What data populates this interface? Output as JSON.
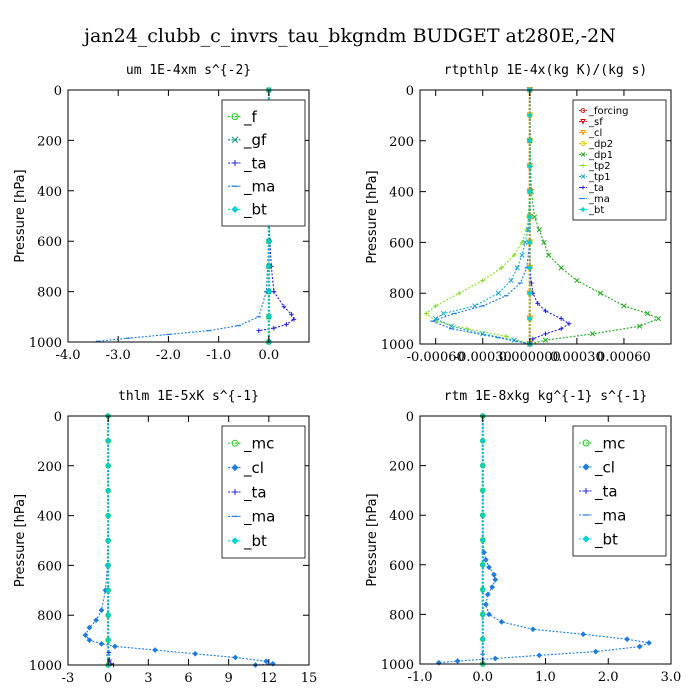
{
  "figure_title": "jan24_clubb_c_invrs_tau_bkgndm  BUDGET at280E,-2N",
  "chart_data": [
    {
      "type": "line",
      "title": "um   1E-4xm s^{-2}",
      "ylabel": "Pressure [hPa]",
      "xlim": [
        -4.0,
        0.8
      ],
      "ylim": [
        1000,
        0
      ],
      "xticks": [
        "-4.0",
        "-3.0",
        "-2.0",
        "-1.0",
        "0.0"
      ],
      "xtick_values": [
        -4.0,
        -3.0,
        -2.0,
        -1.0,
        0.0
      ],
      "yticks": [
        "0",
        "200",
        "400",
        "600",
        "800",
        "1000"
      ],
      "ytick_values": [
        0,
        200,
        400,
        600,
        800,
        1000
      ],
      "legend_position": "top-right",
      "legend_entries": [
        "_f",
        "_gf",
        "_ta",
        "_ma",
        "_bt"
      ],
      "series": [
        {
          "name": "_f",
          "color": "#22cc22",
          "marker": "circle",
          "x": [
            0,
            0,
            0,
            0,
            0,
            0,
            0,
            0,
            0,
            0,
            0
          ],
          "y": [
            0,
            100,
            200,
            300,
            400,
            500,
            600,
            700,
            800,
            900,
            1000
          ]
        },
        {
          "name": "_gf",
          "color": "#0b8f7c",
          "marker": "x",
          "x": [
            0,
            0,
            0,
            0,
            0,
            0,
            0,
            0,
            0,
            0,
            0
          ],
          "y": [
            0,
            100,
            200,
            300,
            400,
            500,
            600,
            700,
            800,
            900,
            1000
          ]
        },
        {
          "name": "_ta",
          "color": "#2222dd",
          "marker": "plus",
          "x": [
            0,
            0,
            0,
            0,
            0,
            0,
            0.02,
            0.05,
            0.1,
            0.3,
            0.45,
            0.5,
            0.35,
            0.1,
            -0.2
          ],
          "y": [
            0,
            100,
            200,
            300,
            400,
            500,
            600,
            700,
            800,
            860,
            890,
            910,
            930,
            945,
            955
          ]
        },
        {
          "name": "_ma",
          "color": "#1e7ce0",
          "marker": "dash",
          "x": [
            0,
            0,
            0,
            0,
            0,
            0,
            0,
            -0.05,
            -0.2,
            -0.6,
            -1.2,
            -2.0,
            -2.8,
            -3.4
          ],
          "y": [
            0,
            100,
            200,
            300,
            400,
            500,
            600,
            800,
            900,
            935,
            955,
            970,
            985,
            997
          ]
        },
        {
          "name": "_bt",
          "color": "#00d0d0",
          "marker": "diamond",
          "x": [
            0,
            0,
            0,
            0,
            0,
            0,
            0,
            0,
            0,
            0,
            0
          ],
          "y": [
            0,
            100,
            200,
            300,
            400,
            500,
            600,
            700,
            800,
            900,
            1000
          ]
        }
      ]
    },
    {
      "type": "line",
      "title": "rtpthlp  1E-4x(kg K)/(kg s)",
      "ylabel": "Pressure [hPa]",
      "xlim": [
        -0.0007,
        0.0009
      ],
      "ylim": [
        1000,
        0
      ],
      "xticks": [
        "-0.00060",
        "-0.00030",
        "0.000000",
        "0.00030",
        "0.00060"
      ],
      "xtick_values": [
        -0.0006,
        -0.0003,
        0.0,
        0.0003,
        0.0006
      ],
      "yticks": [
        "0",
        "200",
        "400",
        "600",
        "800",
        "1000"
      ],
      "ytick_values": [
        0,
        200,
        400,
        600,
        800,
        1000
      ],
      "legend_position": "top-right",
      "legend_entries": [
        "_forcing",
        "_sf",
        "_cl",
        "_dp2",
        "_dp1",
        "_tp2",
        "_tp1",
        "_ta",
        "_ma",
        "_bt"
      ],
      "series": [
        {
          "name": "_forcing",
          "color": "#cc2222",
          "marker": "circle",
          "x": [
            0,
            0,
            0,
            0,
            0,
            0,
            0,
            0,
            0,
            0,
            0
          ],
          "y": [
            0,
            100,
            200,
            300,
            400,
            500,
            600,
            700,
            800,
            900,
            1000
          ]
        },
        {
          "name": "_sf",
          "color": "#dd0000",
          "marker": "triangle",
          "x": [
            0,
            0,
            0,
            0,
            0,
            0,
            0,
            0,
            0,
            0,
            0
          ],
          "y": [
            0,
            100,
            200,
            300,
            400,
            500,
            600,
            700,
            800,
            900,
            1000
          ]
        },
        {
          "name": "_cl",
          "color": "#ee9900",
          "marker": "triangle",
          "x": [
            0,
            0,
            0,
            0,
            0,
            0,
            0,
            0,
            0,
            0,
            0
          ],
          "y": [
            0,
            100,
            200,
            300,
            400,
            500,
            600,
            700,
            800,
            900,
            1000
          ]
        },
        {
          "name": "_dp2",
          "color": "#ddcc00",
          "marker": "circle",
          "x": [
            0,
            0,
            0,
            0,
            0,
            0,
            0,
            0,
            0,
            0,
            0
          ],
          "y": [
            0,
            100,
            200,
            300,
            400,
            500,
            600,
            700,
            800,
            900,
            1000
          ]
        },
        {
          "name": "_dp1",
          "color": "#22aa22",
          "marker": "x",
          "x": [
            0,
            0,
            1e-05,
            3e-05,
            6e-05,
            9e-05,
            0.00012,
            0.0002,
            0.0003,
            0.00045,
            0.0006,
            0.00075,
            0.00082,
            0.0007,
            0.0004,
            0.0001,
            0
          ],
          "y": [
            0,
            200,
            400,
            500,
            550,
            600,
            650,
            700,
            750,
            800,
            850,
            880,
            900,
            930,
            960,
            985,
            1000
          ]
        },
        {
          "name": "_tp2",
          "color": "#88dd22",
          "marker": "plus",
          "x": [
            0,
            0,
            -1e-05,
            -2e-05,
            -5e-05,
            -0.0001,
            -0.00018,
            -0.0003,
            -0.00045,
            -0.0006,
            -0.00066,
            -0.0006,
            -0.0004,
            -0.00015,
            0
          ],
          "y": [
            0,
            400,
            500,
            550,
            600,
            650,
            700,
            750,
            800,
            850,
            880,
            910,
            940,
            970,
            1000
          ]
        },
        {
          "name": "_tp1",
          "color": "#22aacc",
          "marker": "x",
          "x": [
            0,
            0,
            -1e-05,
            -3e-05,
            -5e-05,
            -8e-05,
            -0.00012,
            -0.0002,
            -0.00035,
            -0.00055,
            -0.0006,
            -0.0005,
            -0.0003,
            -0.0001,
            0
          ],
          "y": [
            0,
            400,
            550,
            600,
            650,
            700,
            750,
            800,
            850,
            880,
            900,
            930,
            960,
            985,
            1000
          ]
        },
        {
          "name": "_ta",
          "color": "#2222dd",
          "marker": "plus",
          "x": [
            0,
            0,
            1e-05,
            2e-05,
            5e-05,
            0.0001,
            0.0002,
            0.00025,
            0.0002,
            0.0001,
            2e-05,
            0
          ],
          "y": [
            0,
            700,
            760,
            800,
            840,
            870,
            900,
            920,
            940,
            960,
            980,
            1000
          ]
        },
        {
          "name": "_ma",
          "color": "#1e7ce0",
          "marker": "dash",
          "x": [
            0,
            0,
            -2e-05,
            -6e-05,
            -0.00015,
            -0.0003,
            -0.00048,
            -0.00062,
            -0.0005,
            -0.0002,
            0
          ],
          "y": [
            0,
            600,
            700,
            760,
            810,
            850,
            880,
            910,
            940,
            975,
            1000
          ]
        },
        {
          "name": "_bt",
          "color": "#00d0d0",
          "marker": "diamond",
          "x": [
            0,
            0,
            0,
            0,
            0,
            0,
            0,
            0,
            0,
            0,
            0
          ],
          "y": [
            0,
            100,
            200,
            300,
            400,
            500,
            600,
            700,
            800,
            900,
            1000
          ]
        }
      ]
    },
    {
      "type": "line",
      "title": "thlm  1E-5xK s^{-1}",
      "ylabel": "Pressure [hPa]",
      "xlim": [
        -3,
        15
      ],
      "ylim": [
        1000,
        0
      ],
      "xticks": [
        "-3",
        "0",
        "3",
        "6",
        "9",
        "12",
        "15"
      ],
      "xtick_values": [
        -3,
        0,
        3,
        6,
        9,
        12,
        15
      ],
      "yticks": [
        "0",
        "200",
        "400",
        "600",
        "800",
        "1000"
      ],
      "ytick_values": [
        0,
        200,
        400,
        600,
        800,
        1000
      ],
      "legend_position": "top-right",
      "legend_entries": [
        "_mc",
        "_cl",
        "_ta",
        "_ma",
        "_bt"
      ],
      "series": [
        {
          "name": "_mc",
          "color": "#22cc22",
          "marker": "circle",
          "x": [
            0,
            0,
            0,
            0,
            0,
            0,
            0,
            0,
            0,
            0,
            0
          ],
          "y": [
            0,
            100,
            200,
            300,
            400,
            500,
            600,
            700,
            800,
            900,
            1000
          ]
        },
        {
          "name": "_cl",
          "color": "#1e7ce0",
          "marker": "diamond",
          "x": [
            0,
            0,
            -0.05,
            -0.2,
            -0.5,
            -0.9,
            -1.4,
            -1.7,
            -1.4,
            -0.5,
            0.5,
            3.5,
            6.5,
            9.5,
            11.8,
            12.3,
            11.0
          ],
          "y": [
            0,
            500,
            600,
            700,
            780,
            820,
            850,
            880,
            900,
            915,
            925,
            940,
            955,
            970,
            985,
            995,
            1000
          ]
        },
        {
          "name": "_ta",
          "color": "#2222dd",
          "marker": "plus",
          "x": [
            0,
            0,
            0,
            0,
            0,
            0,
            0.05,
            0.1,
            0.2,
            0.4
          ],
          "y": [
            0,
            200,
            400,
            600,
            800,
            900,
            950,
            980,
            995,
            1000
          ]
        },
        {
          "name": "_ma",
          "color": "#1e7ce0",
          "marker": "dash",
          "x": [
            0,
            0,
            0,
            0,
            0,
            0,
            0,
            0
          ],
          "y": [
            0,
            200,
            400,
            600,
            800,
            900,
            960,
            1000
          ]
        },
        {
          "name": "_bt",
          "color": "#00d0d0",
          "marker": "diamond",
          "x": [
            0,
            0,
            0,
            0,
            0,
            0,
            0,
            0,
            0,
            0,
            0
          ],
          "y": [
            0,
            100,
            200,
            300,
            400,
            500,
            600,
            700,
            800,
            900,
            1000
          ]
        }
      ]
    },
    {
      "type": "line",
      "title": "rtm  1E-8xkg kg^{-1} s^{-1}",
      "ylabel": "Pressure [hPa]",
      "xlim": [
        -1.0,
        3.0
      ],
      "ylim": [
        1000,
        0
      ],
      "xticks": [
        "-1.0",
        "0.0",
        "1.0",
        "2.0",
        "3.0"
      ],
      "xtick_values": [
        -1.0,
        0.0,
        1.0,
        2.0,
        3.0
      ],
      "yticks": [
        "0",
        "200",
        "400",
        "600",
        "800",
        "1000"
      ],
      "ytick_values": [
        0,
        200,
        400,
        600,
        800,
        1000
      ],
      "legend_position": "top-right",
      "legend_entries": [
        "_mc",
        "_cl",
        "_ta",
        "_ma",
        "_bt"
      ],
      "series": [
        {
          "name": "_mc",
          "color": "#22cc22",
          "marker": "circle",
          "x": [
            0,
            0,
            0,
            0,
            0,
            0,
            0,
            0,
            0,
            0,
            0
          ],
          "y": [
            0,
            100,
            200,
            300,
            400,
            500,
            600,
            700,
            800,
            900,
            1000
          ]
        },
        {
          "name": "_cl",
          "color": "#1e7ce0",
          "marker": "diamond",
          "x": [
            0,
            0,
            0.02,
            0.05,
            0.1,
            0.18,
            0.2,
            0.15,
            0.08,
            0.05,
            0.1,
            0.3,
            0.8,
            1.6,
            2.3,
            2.65,
            2.5,
            1.8,
            0.9,
            0.2,
            -0.4,
            -0.7
          ],
          "y": [
            0,
            500,
            550,
            580,
            610,
            640,
            660,
            690,
            720,
            760,
            800,
            830,
            860,
            880,
            900,
            915,
            930,
            950,
            965,
            978,
            988,
            995
          ]
        },
        {
          "name": "_ta",
          "color": "#2222dd",
          "marker": "plus",
          "x": [
            0,
            0,
            0,
            0,
            0,
            0,
            0,
            0
          ],
          "y": [
            0,
            200,
            400,
            600,
            800,
            900,
            960,
            1000
          ]
        },
        {
          "name": "_ma",
          "color": "#1e7ce0",
          "marker": "dash",
          "x": [
            0,
            0,
            0,
            0,
            0,
            0,
            0,
            0
          ],
          "y": [
            0,
            200,
            400,
            600,
            800,
            900,
            960,
            1000
          ]
        },
        {
          "name": "_bt",
          "color": "#00d0d0",
          "marker": "diamond",
          "x": [
            0,
            0,
            0,
            0,
            0,
            0,
            0,
            0,
            0,
            0,
            0
          ],
          "y": [
            0,
            100,
            200,
            300,
            400,
            500,
            600,
            700,
            800,
            900,
            1000
          ]
        }
      ]
    }
  ]
}
